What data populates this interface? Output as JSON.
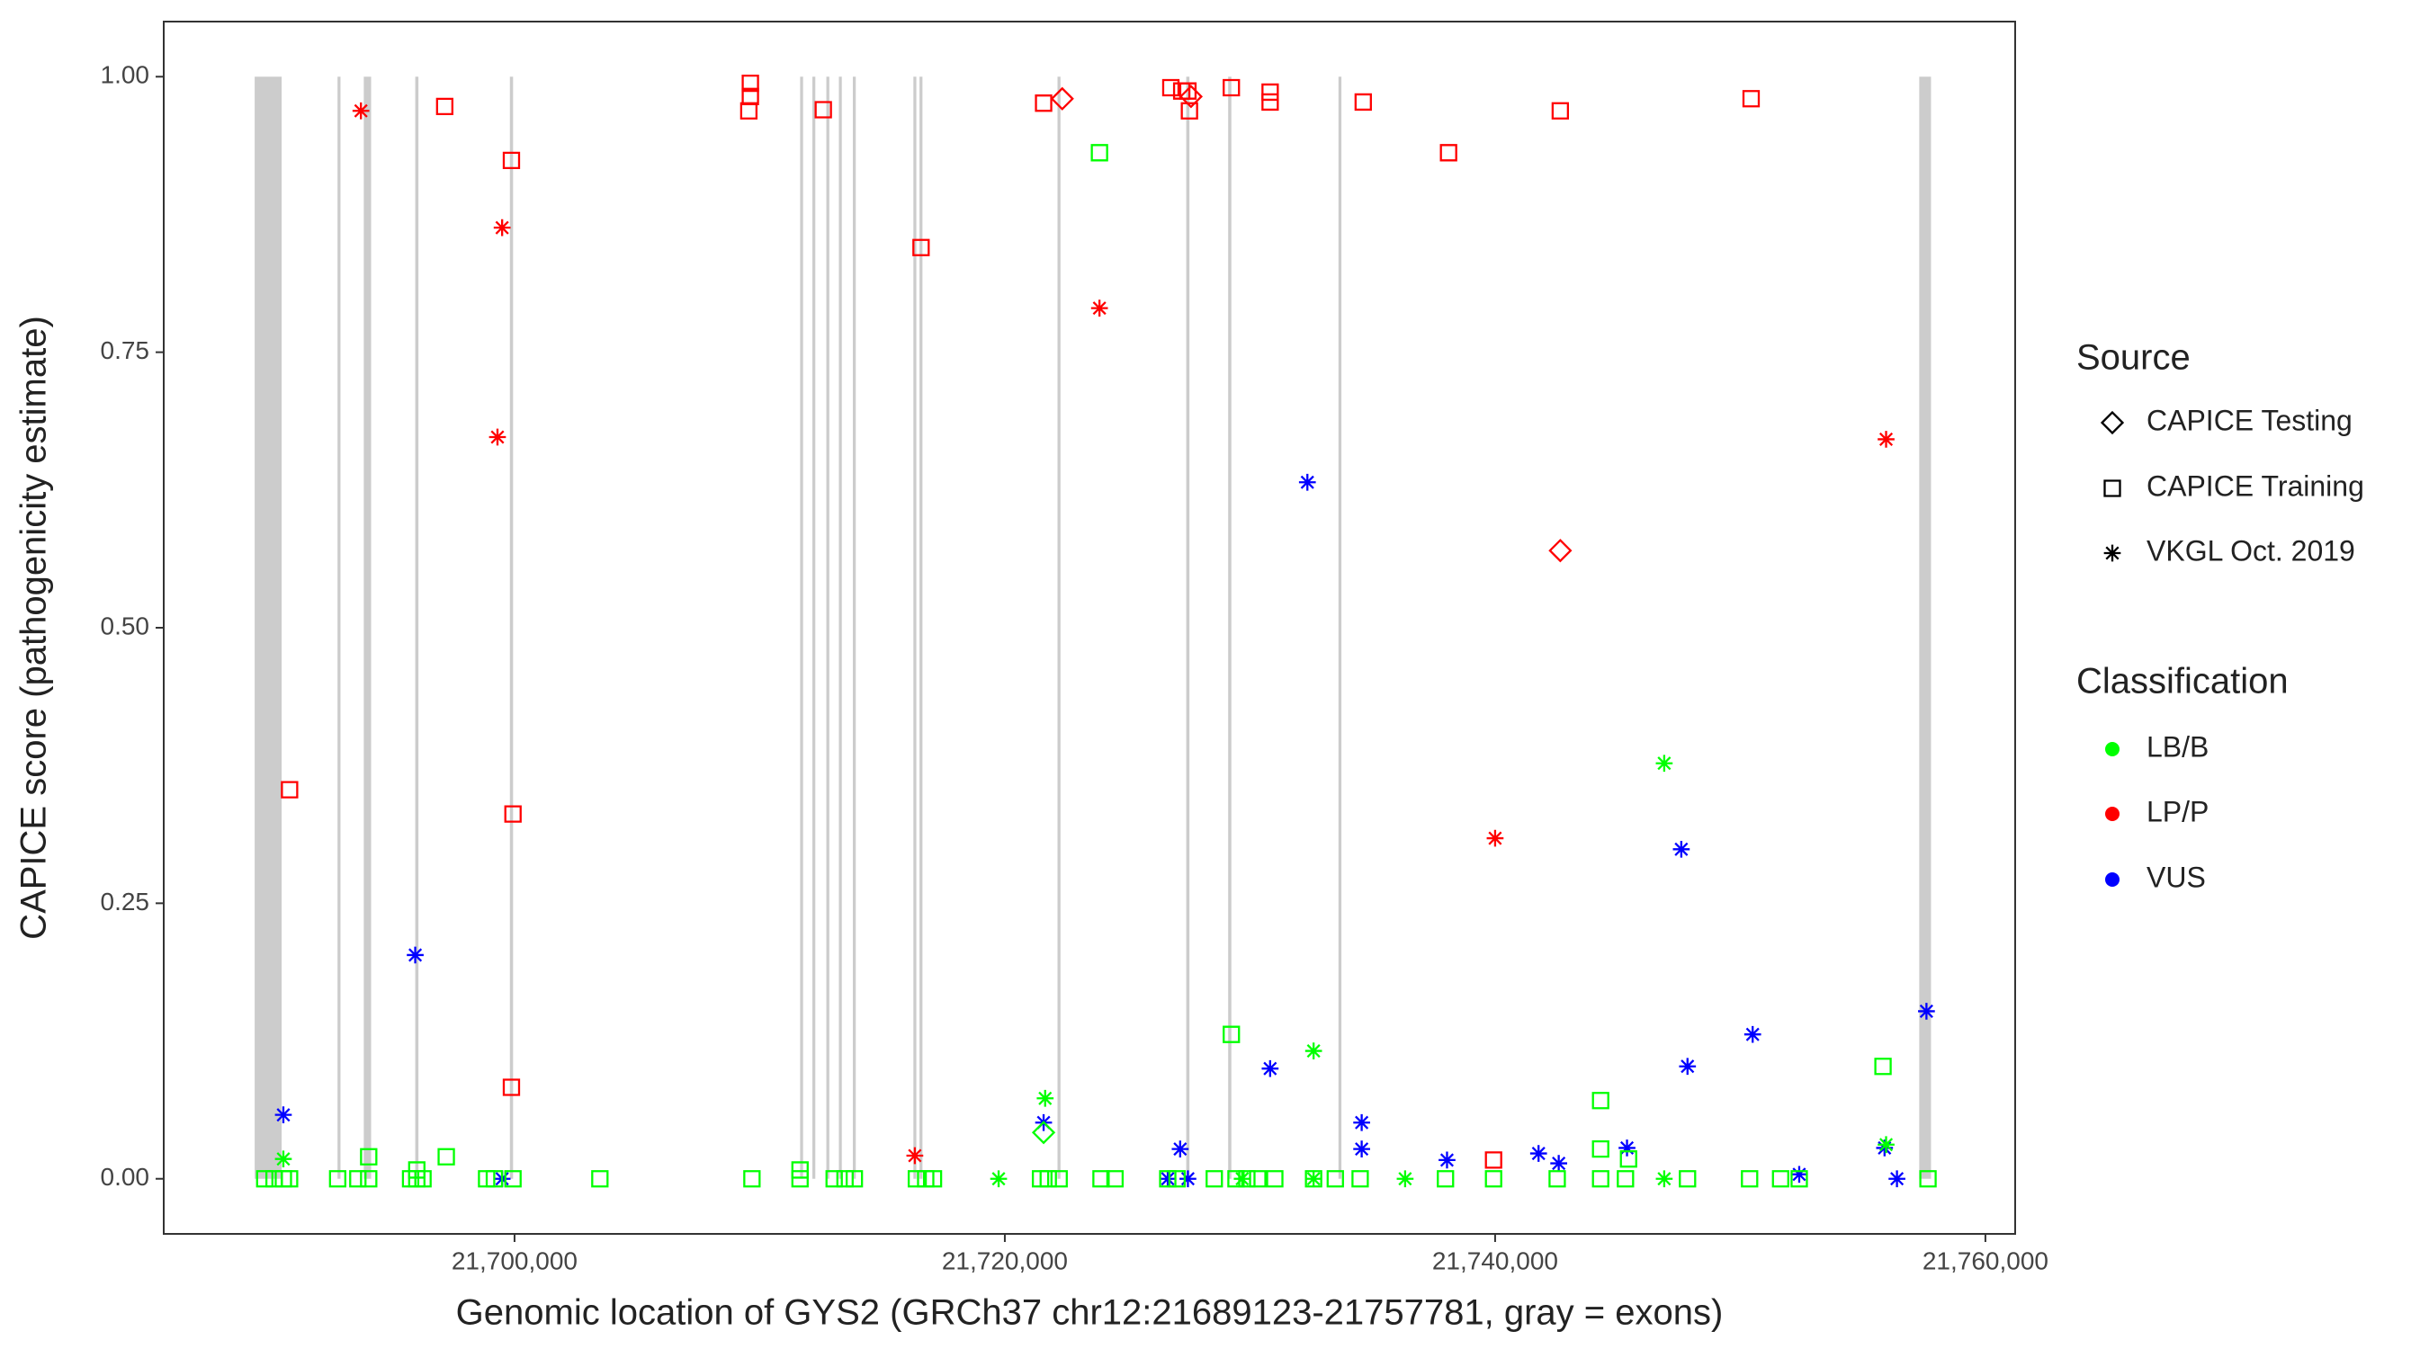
{
  "chart_data": {
    "type": "scatter",
    "x_label": "Genomic location of GYS2 (GRCh37 chr12:21689123-21757781, gray = exons)",
    "y_label": "CAPICE score (pathogenicity estimate)",
    "xlim": [
      21685690,
      21761214
    ],
    "ylim": [
      -0.05,
      1.05
    ],
    "xticks": [
      {
        "value": 21700000,
        "label": "21,700,000"
      },
      {
        "value": 21720000,
        "label": "21,720,000"
      },
      {
        "value": 21740000,
        "label": "21,740,000"
      },
      {
        "value": 21760000,
        "label": "21,760,000"
      }
    ],
    "yticks": [
      {
        "value": 0,
        "label": "0.00"
      },
      {
        "value": 0.25,
        "label": "0.25"
      },
      {
        "value": 0.5,
        "label": "0.50"
      },
      {
        "value": 0.75,
        "label": "0.75"
      },
      {
        "value": 1,
        "label": "1.00"
      }
    ],
    "exon_color": "#cccccc",
    "exons": [
      [
        21689400,
        21690500
      ],
      [
        21692780,
        21692900
      ],
      [
        21693850,
        21694150
      ],
      [
        21695950,
        21696080
      ],
      [
        21699810,
        21699940
      ],
      [
        21711650,
        21711770
      ],
      [
        21712150,
        21712270
      ],
      [
        21712720,
        21712840
      ],
      [
        21713230,
        21713350
      ],
      [
        21713800,
        21713920
      ],
      [
        21716270,
        21716390
      ],
      [
        21716520,
        21716640
      ],
      [
        21722150,
        21722270
      ],
      [
        21727400,
        21727530
      ],
      [
        21729110,
        21729240
      ],
      [
        21733610,
        21733730
      ],
      [
        21757300,
        21757781
      ]
    ],
    "legends": [
      {
        "title": "Source",
        "entries": [
          {
            "label": "CAPICE Testing",
            "shape": "diamond"
          },
          {
            "label": "CAPICE Training",
            "shape": "square"
          },
          {
            "label": "VKGL Oct. 2019",
            "shape": "asterisk"
          }
        ]
      },
      {
        "title": "Classification",
        "entries": [
          {
            "label": "LB/B",
            "color": "#00ff00"
          },
          {
            "label": "LP/P",
            "color": "#ff0000"
          },
          {
            "label": "VUS",
            "color": "#0000ff"
          }
        ]
      }
    ],
    "series": [
      {
        "source": "CAPICE Training",
        "classification": "LP/P",
        "x": [
          21690823,
          21697152,
          21699873,
          21699937,
          21699873,
          21709620,
          21709620,
          21709557,
          21712595,
          21716582,
          21721582,
          21726772,
          21727216,
          21727468,
          21727531,
          21729240,
          21730822,
          21730822,
          21734620,
          21738101,
          21742658,
          21750443,
          21739937
        ],
        "y": [
          0.353,
          0.973,
          0.924,
          0.331,
          0.083,
          0.994,
          0.982,
          0.969,
          0.97,
          0.845,
          0.976,
          0.99,
          0.987,
          0.987,
          0.969,
          0.99,
          0.986,
          0.977,
          0.977,
          0.931,
          0.969,
          0.98,
          0.017
        ]
      },
      {
        "source": "VKGL Oct. 2019",
        "classification": "LP/P",
        "x": [
          21693734,
          21699494,
          21699304,
          21716329,
          21723861,
          21740000,
          21755949
        ],
        "y": [
          0.969,
          0.863,
          0.673,
          0.021,
          0.79,
          0.309,
          0.671
        ]
      },
      {
        "source": "CAPICE Testing",
        "classification": "LP/P",
        "x": [
          21722342,
          21727595,
          21742658
        ],
        "y": [
          0.98,
          0.982,
          0.57
        ]
      },
      {
        "source": "VKGL Oct. 2019",
        "classification": "VUS",
        "x": [
          21690570,
          21695949,
          21699494,
          21721582,
          21727152,
          21726646,
          21727468,
          21730822,
          21732342,
          21734557,
          21734557,
          21738038,
          21741772,
          21742595,
          21745380,
          21747595,
          21747848,
          21750506,
          21752405,
          21755886,
          21756392,
          21757595
        ],
        "y": [
          0.058,
          0.203,
          0,
          0.051,
          0.027,
          0,
          0,
          0.1,
          0.632,
          0.051,
          0.027,
          0.017,
          0.023,
          0.014,
          0.028,
          0.299,
          0.102,
          0.131,
          0.004,
          0.028,
          0,
          0.152
        ]
      },
      {
        "source": "VKGL Oct. 2019",
        "classification": "LB/B",
        "x": [
          21690570,
          21721645,
          21732595,
          21746898,
          21719747,
          21736329,
          21746898,
          21755949,
          21729683,
          21732595
        ],
        "y": [
          0.018,
          0.073,
          0.116,
          0.377,
          0,
          0,
          0,
          0.031,
          0,
          0
        ]
      },
      {
        "source": "CAPICE Testing",
        "classification": "LB/B",
        "x": [
          21721582
        ],
        "y": [
          0.042
        ]
      },
      {
        "source": "CAPICE Training",
        "classification": "LB/B",
        "x": [
          21723861,
          21729240,
          21744304,
          21755823,
          21744304,
          21694051,
          21697215,
          21696013,
          21711646,
          21745443,
          21689810,
          21690190,
          21690570,
          21690823,
          21692785,
          21693608,
          21694051,
          21695760,
          21696013,
          21696266,
          21698861,
          21699177,
          21699937,
          21703481,
          21709684,
          21711646,
          21713038,
          21713481,
          21713861,
          21716392,
          21716772,
          21717089,
          21721456,
          21721772,
          21722215,
          21723924,
          21724494,
          21726646,
          21727025,
          21728544,
          21729430,
          21729873,
          21730316,
          21731012,
          21732595,
          21733481,
          21734494,
          21737975,
          21739937,
          21742532,
          21744304,
          21745317,
          21747848,
          21750380,
          21751646,
          21752405,
          21757658
        ],
        "y": [
          0.931,
          0.131,
          0.071,
          0.102,
          0.027,
          0.02,
          0.02,
          0.008,
          0.008,
          0.018,
          0,
          0,
          0,
          0,
          0,
          0,
          0,
          0,
          0,
          0,
          0,
          0,
          0,
          0,
          0,
          0,
          0,
          0,
          0,
          0,
          0,
          0,
          0,
          0,
          0,
          0,
          0,
          0,
          0,
          0,
          0,
          0,
          0,
          0,
          0,
          0,
          0,
          0,
          0,
          0,
          0,
          0,
          0,
          0,
          0,
          0,
          0
        ]
      }
    ]
  }
}
